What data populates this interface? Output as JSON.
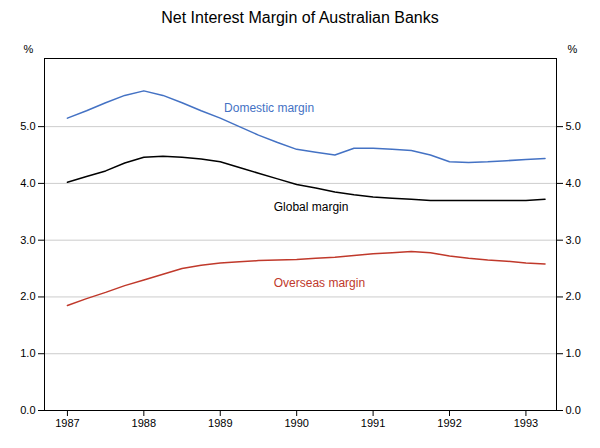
{
  "chart_data": {
    "type": "line",
    "title": "Net Interest Margin of Australian Banks",
    "y_label": "%",
    "y2_label": "%",
    "x": [
      1987.0,
      1987.25,
      1987.5,
      1987.75,
      1988.0,
      1988.25,
      1988.5,
      1988.75,
      1989.0,
      1989.25,
      1989.5,
      1989.75,
      1990.0,
      1990.25,
      1990.5,
      1990.75,
      1991.0,
      1991.25,
      1991.5,
      1991.75,
      1992.0,
      1992.25,
      1992.5,
      1992.75,
      1993.0,
      1993.25
    ],
    "series": [
      {
        "name": "Domestic margin",
        "color": "#4472C4",
        "values": [
          5.15,
          5.28,
          5.42,
          5.55,
          5.63,
          5.55,
          5.42,
          5.28,
          5.15,
          5.0,
          4.85,
          4.72,
          4.6,
          4.55,
          4.5,
          4.62,
          4.62,
          4.6,
          4.58,
          4.5,
          4.38,
          4.37,
          4.38,
          4.4,
          4.42,
          4.44
        ]
      },
      {
        "name": "Global margin",
        "color": "#000000",
        "values": [
          4.02,
          4.12,
          4.22,
          4.36,
          4.46,
          4.48,
          4.46,
          4.43,
          4.38,
          4.28,
          4.18,
          4.08,
          3.98,
          3.92,
          3.85,
          3.8,
          3.76,
          3.74,
          3.72,
          3.7,
          3.7,
          3.7,
          3.7,
          3.7,
          3.7,
          3.72
        ]
      },
      {
        "name": "Overseas margin",
        "color": "#C0392B",
        "values": [
          1.85,
          1.97,
          2.08,
          2.2,
          2.3,
          2.4,
          2.5,
          2.56,
          2.6,
          2.62,
          2.64,
          2.65,
          2.66,
          2.68,
          2.7,
          2.73,
          2.76,
          2.78,
          2.8,
          2.78,
          2.72,
          2.68,
          2.65,
          2.63,
          2.6,
          2.58
        ]
      }
    ],
    "annotations": [
      {
        "text": "Domestic margin",
        "x": 1989.05,
        "y": 5.25,
        "color": "#4472C4"
      },
      {
        "text": "Global margin",
        "x": 1989.7,
        "y": 3.52,
        "color": "#000000"
      },
      {
        "text": "Overseas margin",
        "x": 1989.7,
        "y": 2.18,
        "color": "#C0392B"
      }
    ],
    "xlim": [
      1986.7,
      1993.4
    ],
    "xticks": [
      1987,
      1988,
      1989,
      1990,
      1991,
      1992,
      1993
    ],
    "ylim": [
      0.0,
      6.2
    ],
    "yticks": [
      {
        "value": 0,
        "label": "0.0"
      },
      {
        "value": 1,
        "label": "1.0"
      },
      {
        "value": 2,
        "label": "2.0"
      },
      {
        "value": 3,
        "label": "3.0"
      },
      {
        "value": 4,
        "label": "4.0"
      },
      {
        "value": 5,
        "label": "5.0"
      }
    ],
    "y2lim": [
      0.0,
      6.2
    ],
    "y2ticks": [
      {
        "value": 0,
        "label": "0.0"
      },
      {
        "value": 1,
        "label": "1.0"
      },
      {
        "value": 2,
        "label": "2.0"
      },
      {
        "value": 3,
        "label": "3.0"
      },
      {
        "value": 4,
        "label": "4.0"
      },
      {
        "value": 5,
        "label": "5.0"
      }
    ],
    "grid": true
  }
}
